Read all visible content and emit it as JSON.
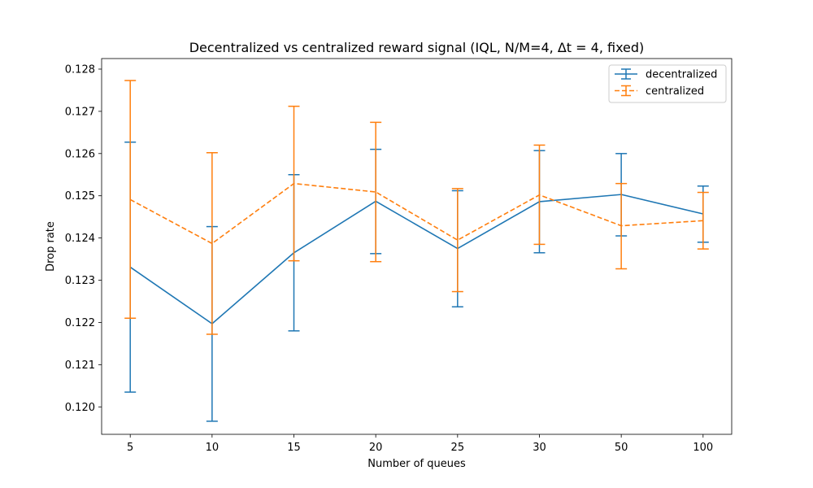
{
  "chart_data": {
    "type": "line",
    "title": "Decentralized vs centralized reward signal (IQL, N/M=4, Δt = 4, fixed)",
    "xlabel": "Number of queues",
    "ylabel": "Drop rate",
    "categories": [
      "5",
      "10",
      "15",
      "20",
      "25",
      "30",
      "50",
      "100"
    ],
    "ylim": [
      0.11935,
      0.12825
    ],
    "yticks": [
      "0.120",
      "0.121",
      "0.122",
      "0.123",
      "0.124",
      "0.125",
      "0.126",
      "0.127",
      "0.128"
    ],
    "ytick_values": [
      0.12,
      0.121,
      0.122,
      0.123,
      0.124,
      0.125,
      0.126,
      0.127,
      0.128
    ],
    "grid": false,
    "legend": {
      "placement": "upper-right"
    },
    "series": [
      {
        "name": "decentralized",
        "color": "#1f77b4",
        "style": "solid",
        "values": [
          0.12331,
          0.12197,
          0.12365,
          0.12487,
          0.12375,
          0.12486,
          0.12503,
          0.12457
        ],
        "err_low": [
          0.12035,
          0.11966,
          0.1218,
          0.12363,
          0.12237,
          0.12365,
          0.12405,
          0.1239
        ],
        "err_high": [
          0.12627,
          0.12427,
          0.1255,
          0.1261,
          0.12512,
          0.12607,
          0.126,
          0.12523
        ]
      },
      {
        "name": "centralized",
        "color": "#ff7f0e",
        "style": "dashed",
        "values": [
          0.12491,
          0.12387,
          0.12529,
          0.12509,
          0.12395,
          0.12502,
          0.12429,
          0.12441
        ],
        "err_low": [
          0.1221,
          0.12172,
          0.12346,
          0.12344,
          0.12273,
          0.12385,
          0.12327,
          0.12374
        ],
        "err_high": [
          0.12773,
          0.12602,
          0.12712,
          0.12674,
          0.12517,
          0.1262,
          0.12529,
          0.12508
        ]
      }
    ]
  }
}
